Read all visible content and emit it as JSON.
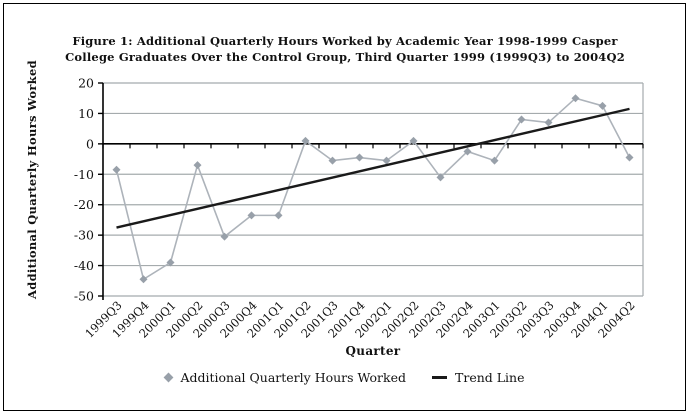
{
  "figure": {
    "background": "#ffffff",
    "border_color": "#000000"
  },
  "chart_data": {
    "type": "line",
    "title_lines": [
      "Figure 1: Additional Quarterly Hours Worked by Academic Year 1998-1999 Casper",
      "College Graduates Over the Control Group, Third Quarter 1999 (1999Q3) to 2004Q2"
    ],
    "xlabel": "Quarter",
    "ylabel": "Additional Quarterly Hours Worked",
    "ylim": [
      -50,
      20
    ],
    "y_ticks": [
      20,
      10,
      0,
      -10,
      -20,
      -30,
      -40,
      -50
    ],
    "grid": "horizontal",
    "grid_color": "#a5abad",
    "axis_color": "#000000",
    "legend_position": "bottom",
    "categories": [
      "1999Q3",
      "1999Q4",
      "2000Q1",
      "2000Q2",
      "2000Q3",
      "2000Q4",
      "2001Q1",
      "2001Q2",
      "2001Q3",
      "2001Q4",
      "2002Q1",
      "2002Q2",
      "2002Q3",
      "2002Q4",
      "2003Q1",
      "2003Q2",
      "2003Q3",
      "2003Q4",
      "2004Q1",
      "2004Q2"
    ],
    "series": [
      {
        "name": "Additional Quarterly Hours Worked",
        "type": "line_with_diamond_markers",
        "line_color": "#adb3ba",
        "marker_color": "#98a0a9",
        "values": [
          -8.5,
          -44.5,
          -39,
          -7,
          -30.5,
          -23.5,
          -23.5,
          1,
          -5.5,
          -4.5,
          -5.5,
          1,
          -11,
          -2.5,
          -5.5,
          8,
          7,
          15,
          12.5,
          -4.5
        ]
      },
      {
        "name": "Trend Line",
        "type": "linear_trend",
        "color": "#1a1a1a",
        "start_value": -27.5,
        "end_value": 11.5
      }
    ]
  }
}
